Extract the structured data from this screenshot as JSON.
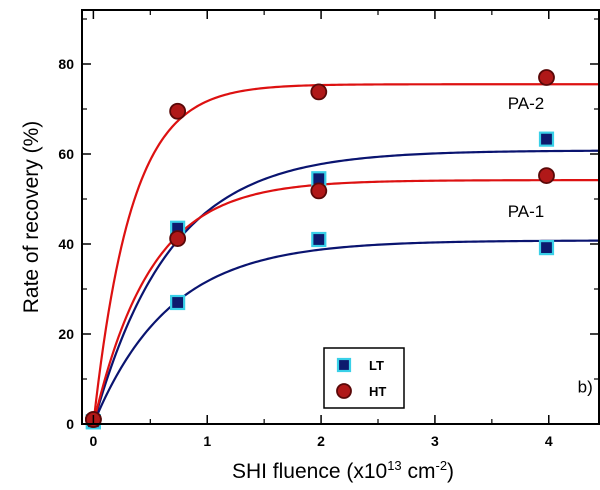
{
  "chart_data": {
    "type": "scatter",
    "title": "",
    "xlabel": "SHI fluence (x10^13 cm^-2)",
    "xlabel_parts": {
      "main": "SHI fluence (x10",
      "exp1": "13",
      "mid": " cm",
      "exp2": "-2",
      "end": ")"
    },
    "ylabel": "Rate of recovery (%)",
    "xlim": [
      -0.1,
      4.45
    ],
    "ylim": [
      0,
      92
    ],
    "xticks": [
      0,
      1,
      2,
      3,
      4
    ],
    "yticks": [
      0,
      20,
      40,
      60,
      80
    ],
    "xtick_labels": [
      "0",
      "1",
      "2",
      "3",
      "4"
    ],
    "ytick_labels": [
      "0",
      "20",
      "40",
      "60",
      "80"
    ],
    "grid": false,
    "legend": {
      "position": "bottom-center",
      "entries": [
        {
          "label": "LT",
          "marker": "square",
          "fill": "#0d1a6e",
          "edge": "#39d0e8"
        },
        {
          "label": "HT",
          "marker": "circle",
          "fill": "#b01818",
          "edge": "#5a0808"
        }
      ]
    },
    "annotations": [
      {
        "text": "PA-2",
        "x": 3.8,
        "y": 70
      },
      {
        "text": "PA-1",
        "x": 3.8,
        "y": 46
      },
      {
        "text": "b)",
        "x": 4.32,
        "y": 7
      }
    ],
    "series": [
      {
        "name": "LT",
        "group": "PA-2",
        "marker": "square",
        "x": [
          0,
          0.74,
          1.98,
          3.98
        ],
        "y": [
          0.5,
          43.5,
          54.5,
          63.3
        ]
      },
      {
        "name": "LT",
        "group": "PA-1",
        "marker": "square",
        "x": [
          0,
          0.74,
          1.98,
          3.98
        ],
        "y": [
          0.5,
          27,
          41,
          39.2
        ]
      },
      {
        "name": "HT",
        "group": "PA-2",
        "marker": "circle",
        "x": [
          0,
          0.74,
          1.98,
          3.98
        ],
        "y": [
          1,
          69.5,
          73.8,
          77
        ]
      },
      {
        "name": "HT",
        "group": "PA-1",
        "marker": "circle",
        "x": [
          0,
          0.74,
          1.98,
          3.98
        ],
        "y": [
          1,
          41.2,
          51.8,
          55.2
        ]
      }
    ],
    "fits": [
      {
        "group": "PA-2",
        "sample": "HT",
        "color": "#dd1111",
        "A": 75.5,
        "k": 3.0
      },
      {
        "group": "PA-2",
        "sample": "LT",
        "color": "#0a1470",
        "A": 60.8,
        "k": 1.5
      },
      {
        "group": "PA-1",
        "sample": "HT",
        "color": "#dd1111",
        "A": 54.2,
        "k": 2.0
      },
      {
        "group": "PA-1",
        "sample": "LT",
        "color": "#0a1470",
        "A": 40.8,
        "k": 1.5
      }
    ],
    "colors": {
      "lt_fill": "#0d1a6e",
      "lt_edge": "#39d0e8",
      "ht_fill": "#b01818",
      "ht_edge": "#5a0808",
      "fit_red": "#dd1111",
      "fit_blue": "#0a1470"
    }
  }
}
